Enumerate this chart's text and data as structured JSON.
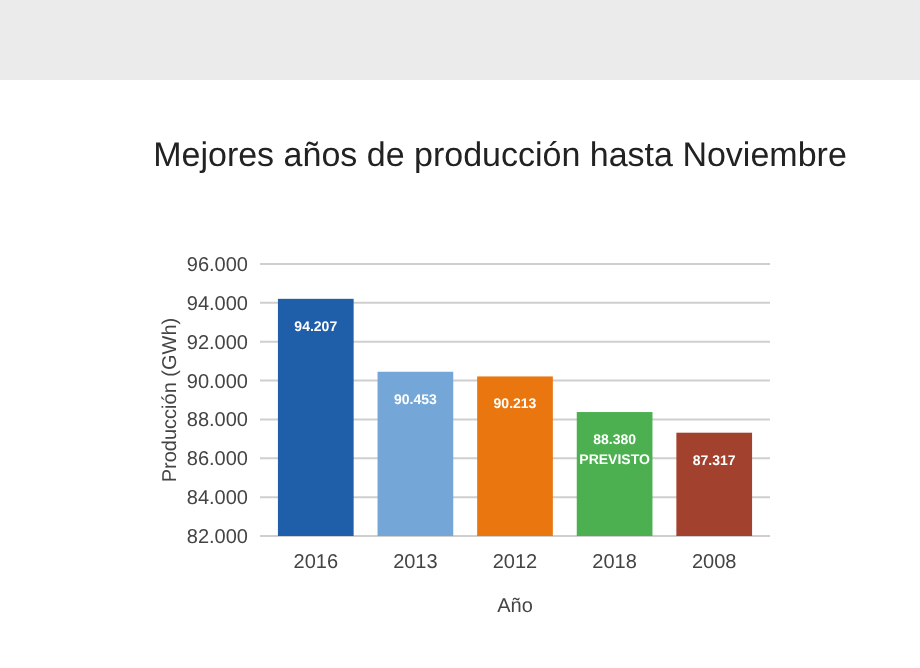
{
  "chart_data": {
    "type": "bar",
    "title": "Mejores años de producción hasta Noviembre",
    "xlabel": "Año",
    "ylabel": "Producción (GWh)",
    "categories": [
      "2016",
      "2013",
      "2012",
      "2018",
      "2008"
    ],
    "values": [
      94207,
      90453,
      90213,
      88380,
      87317
    ],
    "colors": [
      "#1f5ea8",
      "#74a6d8",
      "#e9760f",
      "#4caf50",
      "#a3412f"
    ],
    "value_labels": [
      "94.207",
      "90.453",
      "90.213",
      "88.380\nPREVISTO",
      "87.317"
    ],
    "ylim": [
      82000,
      96000
    ],
    "yticks": [
      {
        "value": 82000,
        "label": "82.000"
      },
      {
        "value": 84000,
        "label": "84.000"
      },
      {
        "value": 86000,
        "label": "86.000"
      },
      {
        "value": 88000,
        "label": "88.000"
      },
      {
        "value": 90000,
        "label": "90.000"
      },
      {
        "value": 92000,
        "label": "92.000"
      },
      {
        "value": 94000,
        "label": "94.000"
      },
      {
        "value": 96000,
        "label": "96.000"
      }
    ],
    "grid": "y"
  }
}
